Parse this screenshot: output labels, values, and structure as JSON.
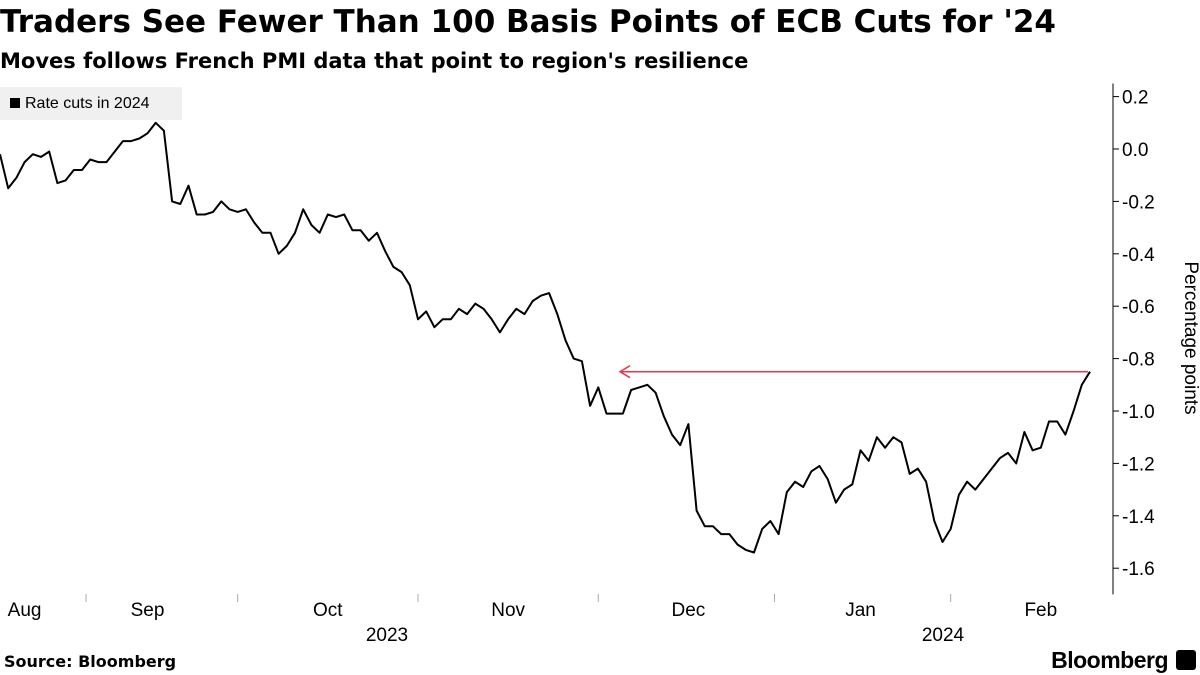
{
  "chart_data": {
    "type": "line",
    "title": "Traders See Fewer Than 100 Basis Points of ECB Cuts for '24",
    "subtitle": "Moves follows French PMI data that point to region's resilience",
    "y_label": "Percentage points",
    "source": "Source: Bloomberg",
    "brand": "Bloomberg",
    "years": [
      "2023",
      "2024"
    ],
    "categories": [
      null,
      null,
      null,
      "Aug",
      null,
      null,
      null,
      null,
      null,
      null,
      null,
      null,
      null,
      null,
      null,
      null,
      null,
      null,
      "Sep",
      null,
      null,
      null,
      null,
      null,
      null,
      null,
      null,
      null,
      null,
      null,
      null,
      null,
      null,
      null,
      null,
      null,
      null,
      null,
      null,
      null,
      "Oct",
      null,
      null,
      null,
      null,
      null,
      null,
      null,
      null,
      null,
      null,
      null,
      null,
      null,
      null,
      null,
      null,
      null,
      null,
      null,
      null,
      null,
      "Nov",
      null,
      null,
      null,
      null,
      null,
      null,
      null,
      null,
      null,
      null,
      null,
      null,
      null,
      null,
      null,
      null,
      null,
      null,
      null,
      null,
      null,
      "Dec",
      null,
      null,
      null,
      null,
      null,
      null,
      null,
      null,
      null,
      null,
      null,
      null,
      null,
      null,
      null,
      null,
      null,
      null,
      null,
      null,
      "Jan",
      null,
      null,
      null,
      null,
      null,
      null,
      null,
      null,
      null,
      null,
      null,
      null,
      null,
      null,
      null,
      null,
      null,
      null,
      null,
      null,
      null,
      "Feb",
      null,
      null,
      null,
      null,
      null,
      null
    ],
    "series": [
      {
        "name": "Rate cuts in 2024",
        "color": "#000000",
        "values": [
          -0.02,
          -0.15,
          -0.11,
          -0.05,
          -0.02,
          -0.03,
          -0.01,
          -0.13,
          -0.12,
          -0.08,
          -0.08,
          -0.04,
          -0.05,
          -0.05,
          -0.01,
          0.03,
          0.03,
          0.04,
          0.06,
          0.1,
          0.07,
          -0.2,
          -0.21,
          -0.14,
          -0.25,
          -0.25,
          -0.24,
          -0.2,
          -0.23,
          -0.24,
          -0.23,
          -0.28,
          -0.32,
          -0.32,
          -0.4,
          -0.37,
          -0.32,
          -0.23,
          -0.29,
          -0.32,
          -0.25,
          -0.26,
          -0.25,
          -0.31,
          -0.31,
          -0.35,
          -0.32,
          -0.39,
          -0.45,
          -0.47,
          -0.52,
          -0.65,
          -0.62,
          -0.68,
          -0.65,
          -0.65,
          -0.61,
          -0.63,
          -0.59,
          -0.61,
          -0.65,
          -0.7,
          -0.65,
          -0.61,
          -0.63,
          -0.58,
          -0.56,
          -0.55,
          -0.63,
          -0.73,
          -0.8,
          -0.81,
          -0.98,
          -0.91,
          -1.01,
          -1.01,
          -1.01,
          -0.92,
          -0.91,
          -0.9,
          -0.93,
          -1.02,
          -1.09,
          -1.13,
          -1.05,
          -1.38,
          -1.44,
          -1.44,
          -1.47,
          -1.47,
          -1.51,
          -1.53,
          -1.54,
          -1.45,
          -1.42,
          -1.47,
          -1.31,
          -1.27,
          -1.29,
          -1.23,
          -1.21,
          -1.26,
          -1.35,
          -1.3,
          -1.28,
          -1.15,
          -1.19,
          -1.1,
          -1.14,
          -1.1,
          -1.12,
          -1.24,
          -1.22,
          -1.27,
          -1.42,
          -1.5,
          -1.45,
          -1.32,
          -1.27,
          -1.3,
          -1.26,
          -1.22,
          -1.18,
          -1.16,
          -1.2,
          -1.08,
          -1.15,
          -1.14,
          -1.04,
          -1.04,
          -1.09,
          -1.0,
          -0.9,
          -0.85
        ]
      }
    ],
    "arrow": {
      "value": -0.85,
      "color": "#e8384f"
    },
    "ylim": [
      -1.7,
      0.25
    ],
    "yticks": [
      0.2,
      {
        "value": 0,
        "label": "0.0"
      },
      -0.2,
      -0.4,
      -0.6,
      -0.8,
      {
        "value": -1,
        "label": "-1.0"
      },
      -1.2,
      -1.4,
      -1.6
    ],
    "legend": "top-left"
  }
}
